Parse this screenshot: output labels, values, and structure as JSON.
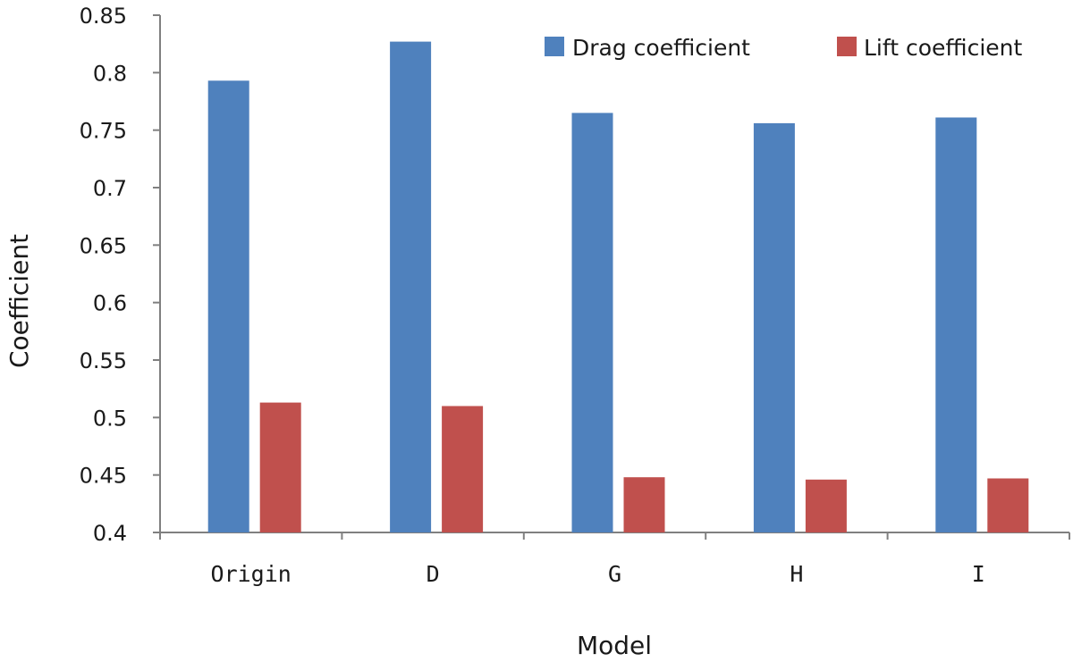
{
  "chart_data": {
    "type": "bar",
    "categories": [
      "Origin",
      "D",
      "G",
      "H",
      "I"
    ],
    "series": [
      {
        "name": "Drag coefficient",
        "values": [
          0.793,
          0.827,
          0.765,
          0.756,
          0.761
        ],
        "color": "#4f81bd"
      },
      {
        "name": "Lift coefficient",
        "values": [
          0.513,
          0.51,
          0.448,
          0.446,
          0.447
        ],
        "color": "#c0504d"
      }
    ],
    "title": "",
    "xlabel": "Model",
    "ylabel": "Coefficient",
    "ylim": [
      0.4,
      0.85
    ],
    "yticks": [
      "0.4",
      "0.45",
      "0.5",
      "0.55",
      "0.6",
      "0.65",
      "0.7",
      "0.75",
      "0.8",
      "0.85"
    ],
    "grid": false,
    "legend_position": "top-right"
  }
}
